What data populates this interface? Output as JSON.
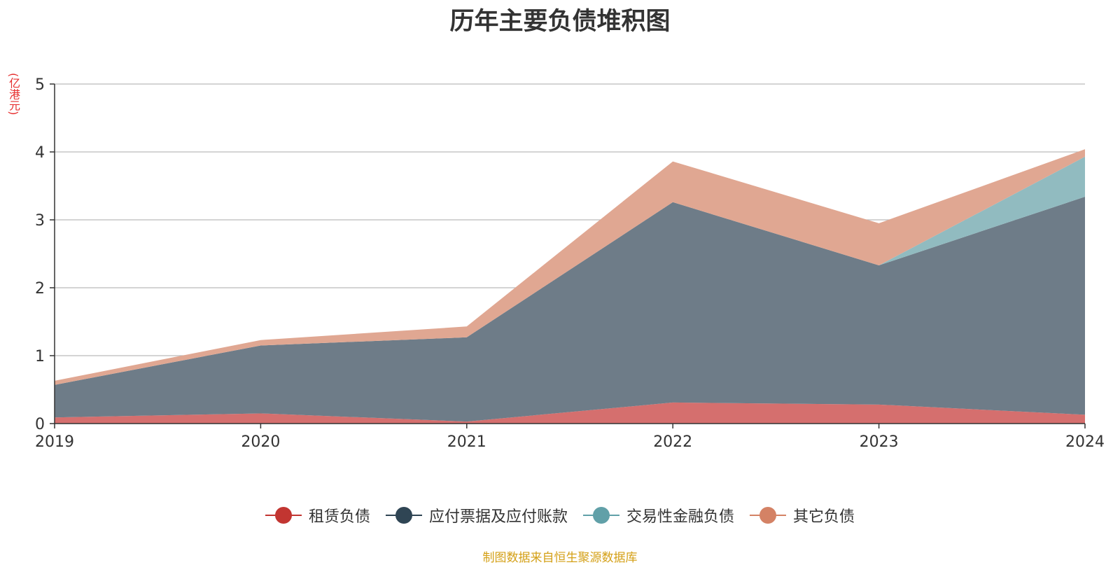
{
  "chart_data": {
    "type": "area",
    "stacked": true,
    "title": "历年主要负债堆积图",
    "unit": "(亿港元)",
    "categories": [
      "2019",
      "2020",
      "2021",
      "2022",
      "2023",
      "2024"
    ],
    "ylim": [
      0,
      5
    ],
    "yticks": [
      "0",
      "1",
      "2",
      "3",
      "4",
      "5"
    ],
    "grid": true,
    "legend_position": "bottom",
    "series": [
      {
        "name": "租赁负债",
        "color": "#c23531",
        "fill": "#d56f6e",
        "values": [
          0.09,
          0.15,
          0.03,
          0.31,
          0.28,
          0.13
        ]
      },
      {
        "name": "应付票据及应付账款",
        "color": "#2f4554",
        "fill": "#6e7c88",
        "values": [
          0.48,
          1.0,
          1.24,
          2.95,
          2.05,
          3.21
        ]
      },
      {
        "name": "交易性金融负债",
        "color": "#61a0a8",
        "fill": "#91bbc0",
        "values": [
          0,
          0,
          0,
          0,
          0,
          0.59
        ]
      },
      {
        "name": "其它负债",
        "color": "#d48265",
        "fill": "#e0a792",
        "values": [
          0.06,
          0.08,
          0.16,
          0.6,
          0.62,
          0.11
        ]
      }
    ]
  },
  "source_note": "制图数据来自恒生聚源数据库"
}
